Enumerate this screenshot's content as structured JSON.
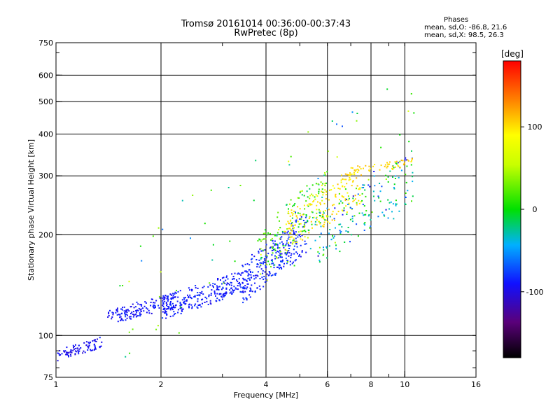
{
  "header": {
    "title_line1": "Tromsø 20161014 00:36:00-00:37:43",
    "title_line2": "RwPretec (8p)"
  },
  "stats": {
    "heading": "Phases",
    "line_o": "mean, sd,O: -86.8, 21.6",
    "line_x": "mean, sd,X:  98.5, 26.3"
  },
  "colorbar": {
    "unit_label": "[deg]",
    "min": -180,
    "max": 180,
    "ticks": [
      {
        "value": 100,
        "label": "100"
      },
      {
        "value": 0,
        "label": "0"
      },
      {
        "value": -100,
        "label": "-100"
      }
    ]
  },
  "chart_data": {
    "type": "scatter",
    "title": "Tromsø 20161014 00:36:00-00:37:43",
    "subtitle": "RwPretec (8p)",
    "xlabel": "Frequency [MHz]",
    "ylabel": "Stationary phase Virtual Height [km]",
    "xscale": "log",
    "yscale": "log",
    "xlim": [
      1,
      16
    ],
    "ylim": [
      75,
      750
    ],
    "grid": true,
    "x_ticks": [
      {
        "value": 1,
        "label": "1"
      },
      {
        "value": 2,
        "label": "2"
      },
      {
        "value": 4,
        "label": "4"
      },
      {
        "value": 6,
        "label": "6"
      },
      {
        "value": 8,
        "label": "8"
      },
      {
        "value": 10,
        "label": "10"
      },
      {
        "value": 16,
        "label": "16"
      }
    ],
    "x_grid": [
      2,
      4,
      6,
      8,
      10
    ],
    "y_ticks": [
      {
        "value": 75,
        "label": "75"
      },
      {
        "value": 100,
        "label": "100"
      },
      {
        "value": 200,
        "label": "200"
      },
      {
        "value": 300,
        "label": "300"
      },
      {
        "value": 400,
        "label": "400"
      },
      {
        "value": 500,
        "label": "500"
      },
      {
        "value": 600,
        "label": "600"
      },
      {
        "value": 750,
        "label": "750"
      }
    ],
    "y_grid": [
      100,
      200,
      300,
      400,
      500,
      600
    ],
    "color_by": "phase (deg)",
    "clusters": [
      {
        "name": "low-band O",
        "fmin": 1.0,
        "fmax": 1.35,
        "hmin": 84,
        "hmax": 100,
        "phase": -95,
        "spread": 18,
        "count": 90
      },
      {
        "name": "E-region O",
        "fmin": 1.4,
        "fmax": 2.2,
        "hmin": 108,
        "hmax": 135,
        "phase": -90,
        "spread": 18,
        "count": 160
      },
      {
        "name": "F1 trace O",
        "fmin": 2.0,
        "fmax": 3.6,
        "hmin": 112,
        "hmax": 160,
        "phase": -88,
        "spread": 18,
        "count": 280
      },
      {
        "name": "F trace O",
        "fmin": 3.4,
        "fmax": 5.2,
        "hmin": 125,
        "hmax": 235,
        "phase": -85,
        "spread": 20,
        "count": 260
      },
      {
        "name": "mixed O/X",
        "fmin": 3.8,
        "fmax": 6.0,
        "hmin": 150,
        "hmax": 320,
        "phase": 20,
        "spread": 90,
        "count": 160
      },
      {
        "name": "F2 X",
        "fmin": 4.5,
        "fmax": 7.5,
        "hmin": 180,
        "hmax": 320,
        "phase": 98,
        "spread": 28,
        "count": 170
      },
      {
        "name": "F2 mixed",
        "fmin": 5.5,
        "fmax": 10.5,
        "hmin": 160,
        "hmax": 360,
        "phase": -30,
        "spread": 100,
        "count": 170
      },
      {
        "name": "F2 X top",
        "fmin": 6.5,
        "fmax": 10.5,
        "hmin": 300,
        "hmax": 340,
        "phase": 105,
        "spread": 20,
        "count": 60
      },
      {
        "name": "scatter",
        "fmin": 1.5,
        "fmax": 11,
        "hmin": 80,
        "hmax": 620,
        "phase": 0,
        "spread": 120,
        "count": 80
      }
    ]
  }
}
